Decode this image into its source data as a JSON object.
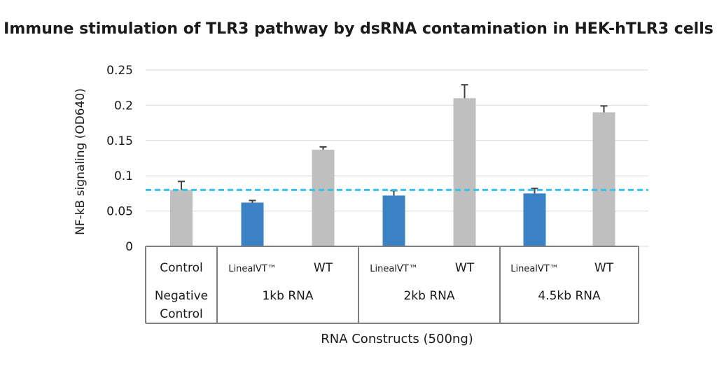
{
  "chart_data": {
    "type": "bar",
    "title": "Immune stimulation of TLR3 pathway by dsRNA contamination in HEK-hTLR3 cells",
    "ylabel": "NF-kB signaling (OD640)",
    "xlabel": "RNA Constructs (500ng)",
    "ylim": [
      0,
      0.25
    ],
    "yticks": [
      "0",
      "0.05",
      "0.1",
      "0.15",
      "0.2",
      "0.25"
    ],
    "grid": true,
    "reference_line": {
      "y": 0.08,
      "style": "dashed",
      "color": "#33c3ec"
    },
    "groups": [
      {
        "label": "Negative Control",
        "label_lines": [
          "Negative",
          "Control"
        ]
      },
      {
        "label": "1kb RNA",
        "label_lines": [
          "1kb RNA"
        ]
      },
      {
        "label": "2kb RNA",
        "label_lines": [
          "2kb RNA"
        ]
      },
      {
        "label": "4.5kb RNA",
        "label_lines": [
          "4.5kb RNA"
        ]
      }
    ],
    "bars": [
      {
        "group": 0,
        "label": "Control",
        "value": 0.08,
        "error": 0.012,
        "color": "#bfbfbf"
      },
      {
        "group": 1,
        "label": "LinealVT™",
        "value": 0.062,
        "error": 0.003,
        "color": "#3b82c4"
      },
      {
        "group": 1,
        "label": "WT",
        "value": 0.137,
        "error": 0.004,
        "color": "#bfbfbf"
      },
      {
        "group": 2,
        "label": "LinealVT™",
        "value": 0.072,
        "error": 0.007,
        "color": "#3b82c4"
      },
      {
        "group": 2,
        "label": "WT",
        "value": 0.21,
        "error": 0.019,
        "color": "#bfbfbf"
      },
      {
        "group": 3,
        "label": "LinealVT™",
        "value": 0.075,
        "error": 0.007,
        "color": "#3b82c4"
      },
      {
        "group": 3,
        "label": "WT",
        "value": 0.19,
        "error": 0.009,
        "color": "#bfbfbf"
      }
    ]
  }
}
